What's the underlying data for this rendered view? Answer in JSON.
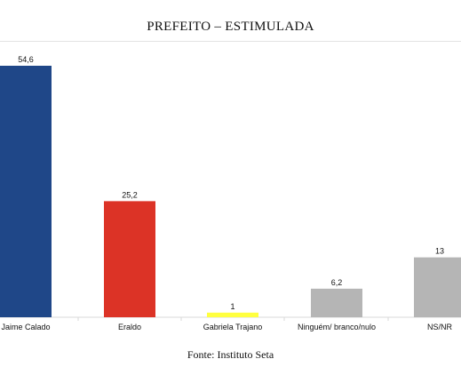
{
  "chart_data": {
    "type": "bar",
    "title": "PREFEITO – ESTIMULADA",
    "categories": [
      "Jaime Calado",
      "Eraldo",
      "Gabriela Trajano",
      "Ninguém/ branco/nulo",
      "NS/NR"
    ],
    "values": [
      54.6,
      25.2,
      1,
      6.2,
      13
    ],
    "value_labels": [
      "54,6",
      "25,2",
      "1",
      "6,2",
      "13"
    ],
    "colors": [
      "#1f4788",
      "#dc3326",
      "#ffff3f",
      "#b5b5b5",
      "#b5b5b5"
    ],
    "ylim": [
      0,
      54.6
    ],
    "xlabel": "",
    "ylabel": "",
    "grid": false,
    "legend": "none"
  },
  "source": "Fonte: Instituto Seta"
}
